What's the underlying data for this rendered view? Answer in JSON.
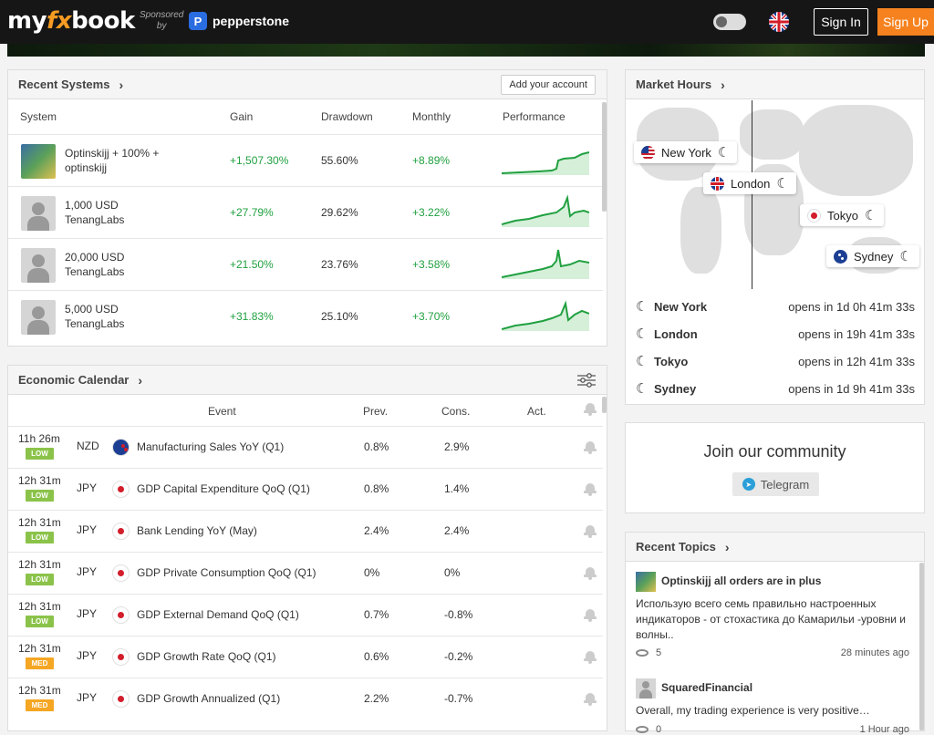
{
  "header": {
    "logo_pre": "my",
    "logo_fx": "fx",
    "logo_post": "book",
    "sponsored_line1": "Sponsored",
    "sponsored_line2": "by",
    "sponsor_name": "pepperstone",
    "sign_in": "Sign In",
    "sign_up": "Sign Up"
  },
  "recent_systems": {
    "title": "Recent Systems",
    "add_account": "Add your account",
    "columns": [
      "System",
      "Gain",
      "Drawdown",
      "Monthly",
      "Performance"
    ],
    "rows": [
      {
        "name": "Optinskijj + 100% +",
        "owner": "optinskijj",
        "gain": "+1,507.30%",
        "drawdown": "55.60%",
        "monthly": "+8.89%"
      },
      {
        "name": "1,000 USD",
        "owner": "TenangLabs",
        "gain": "+27.79%",
        "drawdown": "29.62%",
        "monthly": "+3.22%"
      },
      {
        "name": "20,000 USD",
        "owner": "TenangLabs",
        "gain": "+21.50%",
        "drawdown": "23.76%",
        "monthly": "+3.58%"
      },
      {
        "name": "5,000 USD",
        "owner": "TenangLabs",
        "gain": "+31.83%",
        "drawdown": "25.10%",
        "monthly": "+3.70%"
      }
    ]
  },
  "economic_calendar": {
    "title": "Economic Calendar",
    "columns": [
      "Event",
      "Prev.",
      "Cons.",
      "Act."
    ],
    "rows": [
      {
        "time": "11h 26m",
        "impact": "LOW",
        "currency": "NZD",
        "event": "Manufacturing Sales YoY (Q1)",
        "prev": "0.8%",
        "cons": "2.9%"
      },
      {
        "time": "12h 31m",
        "impact": "LOW",
        "currency": "JPY",
        "event": "GDP Capital Expenditure QoQ (Q1)",
        "prev": "0.8%",
        "cons": "1.4%"
      },
      {
        "time": "12h 31m",
        "impact": "LOW",
        "currency": "JPY",
        "event": "Bank Lending YoY (May)",
        "prev": "2.4%",
        "cons": "2.4%"
      },
      {
        "time": "12h 31m",
        "impact": "LOW",
        "currency": "JPY",
        "event": "GDP Private Consumption QoQ (Q1)",
        "prev": "0%",
        "cons": "0%"
      },
      {
        "time": "12h 31m",
        "impact": "LOW",
        "currency": "JPY",
        "event": "GDP External Demand QoQ (Q1)",
        "prev": "0.7%",
        "cons": "-0.8%"
      },
      {
        "time": "12h 31m",
        "impact": "MED",
        "currency": "JPY",
        "event": "GDP Growth Rate QoQ (Q1)",
        "prev": "0.6%",
        "cons": "-0.2%"
      },
      {
        "time": "12h 31m",
        "impact": "MED",
        "currency": "JPY",
        "event": "GDP Growth Annualized (Q1)",
        "prev": "2.2%",
        "cons": "-0.7%"
      }
    ]
  },
  "market_hours": {
    "title": "Market Hours",
    "map_labels": [
      "New York",
      "London",
      "Tokyo",
      "Sydney"
    ],
    "rows": [
      {
        "city": "New York",
        "opens": "opens in 1d 0h 41m 33s"
      },
      {
        "city": "London",
        "opens": "opens in 19h 41m 33s"
      },
      {
        "city": "Tokyo",
        "opens": "opens in 12h 41m 33s"
      },
      {
        "city": "Sydney",
        "opens": "opens in 1d 9h 41m 33s"
      }
    ]
  },
  "community": {
    "title": "Join our community",
    "telegram": "Telegram"
  },
  "recent_topics": {
    "title": "Recent Topics",
    "topics": [
      {
        "title": "Optinskijj all orders are in plus",
        "text": "Использую всего семь правильно настроенных индикаторов - от стохастика до Камарильи -уровни и волны..",
        "views": "5",
        "ago": "28 minutes ago"
      },
      {
        "title": "SquaredFinancial",
        "text": "Overall, my trading experience is very positive…",
        "views": "0",
        "ago": "1 Hour ago"
      }
    ]
  },
  "colors": {
    "accent": "#f5821f",
    "positive": "#20a040",
    "low": "#8bc34a",
    "med": "#f5a623"
  },
  "icons": [
    "toggle-icon",
    "uk-flag-icon",
    "chevron-right-icon",
    "filter-icon",
    "bell-icon",
    "moon-icon",
    "telegram-icon",
    "eye-icon"
  ]
}
